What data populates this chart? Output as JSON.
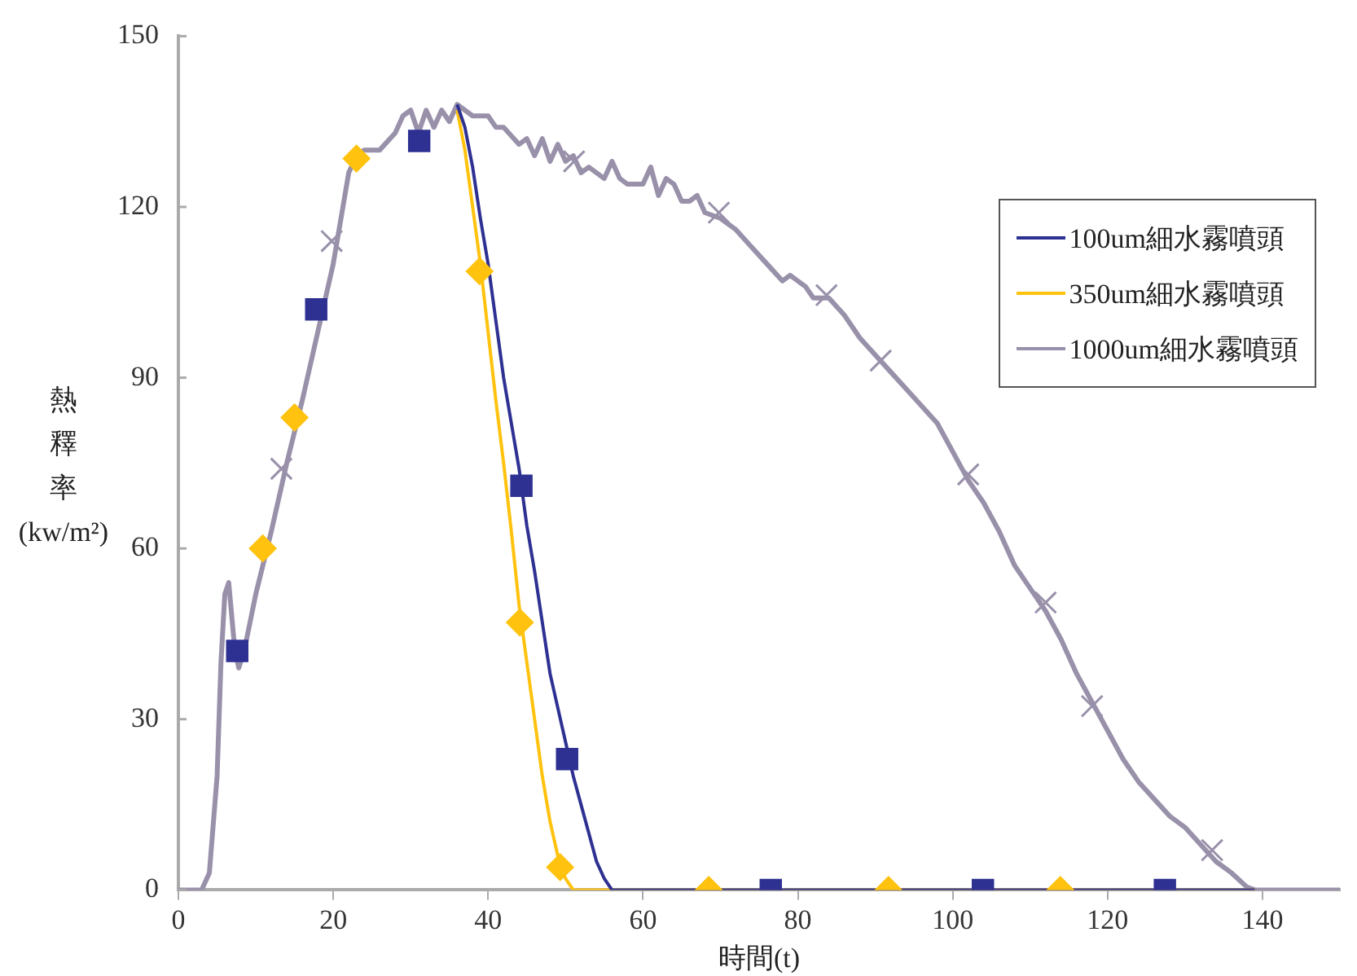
{
  "chart_data": {
    "type": "line",
    "xlabel": "時間(t)",
    "ylabel": "熱釋率(kw/m²)",
    "xlim": [
      0,
      150
    ],
    "xticks": [
      0,
      20,
      40,
      60,
      80,
      100,
      120,
      140
    ],
    "ylim": [
      0,
      150
    ],
    "yticks": [
      0,
      30,
      60,
      90,
      120,
      150
    ],
    "grid": false,
    "legend": "top right",
    "series": [
      {
        "name": "100um細水霧噴頭",
        "color": "#2e3192",
        "marker": "none",
        "x": [
          36,
          37,
          38,
          39,
          40,
          41,
          42,
          43,
          44,
          45,
          46,
          47,
          48,
          49,
          50,
          51,
          52,
          53,
          54,
          55,
          56,
          139
        ],
        "values": [
          138,
          134,
          127,
          118,
          110,
          100,
          90,
          82,
          74,
          64,
          56,
          47,
          38,
          32,
          26,
          20,
          15,
          10,
          5,
          2,
          0,
          0
        ]
      },
      {
        "name": "350um細水霧噴頭",
        "color": "#ffc20e",
        "marker": "none",
        "x": [
          36,
          37,
          38,
          39,
          40,
          41,
          42,
          43,
          44,
          45,
          46,
          47,
          48,
          49,
          50,
          51,
          139
        ],
        "values": [
          137,
          130,
          120,
          110,
          98,
          86,
          75,
          63,
          50,
          40,
          30,
          20,
          12,
          6,
          2,
          0,
          0
        ]
      },
      {
        "name": "1000um細水霧噴頭",
        "color": "#9990aa",
        "marker": "none",
        "x": [
          0,
          3,
          4,
          5,
          5.5,
          6,
          6.5,
          7.3,
          7.8,
          8.5,
          10,
          12,
          14,
          16,
          18,
          20,
          21,
          22,
          23,
          24,
          26,
          28,
          29,
          30,
          31,
          32,
          33,
          34,
          35,
          36,
          37,
          38,
          40,
          41,
          42,
          44,
          45,
          46,
          47,
          48,
          49,
          50,
          51,
          52,
          53,
          55,
          56,
          57,
          58,
          60,
          61,
          62,
          63,
          64,
          65,
          66,
          67,
          68,
          70,
          72,
          74,
          76,
          78,
          79,
          81,
          82,
          84,
          86,
          88,
          90,
          92,
          94,
          96,
          98,
          100,
          102,
          104,
          106,
          108,
          110,
          112,
          114,
          116,
          118,
          120,
          122,
          124,
          126,
          128,
          130,
          132,
          134,
          136,
          138,
          139,
          150
        ],
        "values": [
          0,
          0,
          3,
          20,
          40,
          52,
          54,
          42,
          39,
          42,
          52,
          63,
          75,
          86,
          98,
          110,
          118,
          126,
          129,
          130,
          130,
          133,
          136,
          137,
          133,
          137,
          134,
          137,
          135,
          138,
          137,
          136,
          136,
          134,
          134,
          131,
          132,
          129,
          132,
          128,
          131,
          128,
          129,
          126,
          127,
          125,
          128,
          125,
          124,
          124,
          127,
          122,
          125,
          124,
          121,
          121,
          122,
          119,
          118,
          116,
          113,
          110,
          107,
          108,
          106,
          104,
          104,
          101,
          97,
          94,
          91,
          88,
          85,
          82,
          77,
          72,
          68,
          63,
          57,
          53,
          49,
          44,
          38,
          33,
          28,
          23,
          19,
          16,
          13,
          11,
          8,
          5,
          3,
          0.5,
          0,
          0
        ]
      },
      {
        "type": "scatter",
        "color": "#2e3192",
        "marker": "square",
        "x": [
          7.6,
          17.8,
          31.1,
          44.3,
          50.2,
          76.5,
          103.9,
          127.4
        ],
        "values": [
          42,
          102,
          131.6,
          71,
          23,
          0,
          0,
          0
        ]
      },
      {
        "type": "scatter",
        "color": "#ffc20e",
        "marker": "diamond",
        "x": [
          10.9,
          15,
          23,
          38.9,
          44.1,
          49.3,
          68.5,
          91.7,
          113.9
        ],
        "values": [
          60,
          83,
          128.5,
          108.7,
          47,
          4,
          0,
          0,
          0
        ]
      },
      {
        "type": "scatter",
        "color": "#9990aa",
        "marker": "cross",
        "x": [
          13.3,
          19.8,
          51.1,
          69.8,
          83.7,
          90.7,
          102,
          112,
          118,
          133.5
        ],
        "values": [
          74,
          114,
          128,
          119,
          104.5,
          93,
          73,
          50.5,
          32.3,
          7
        ]
      }
    ]
  }
}
